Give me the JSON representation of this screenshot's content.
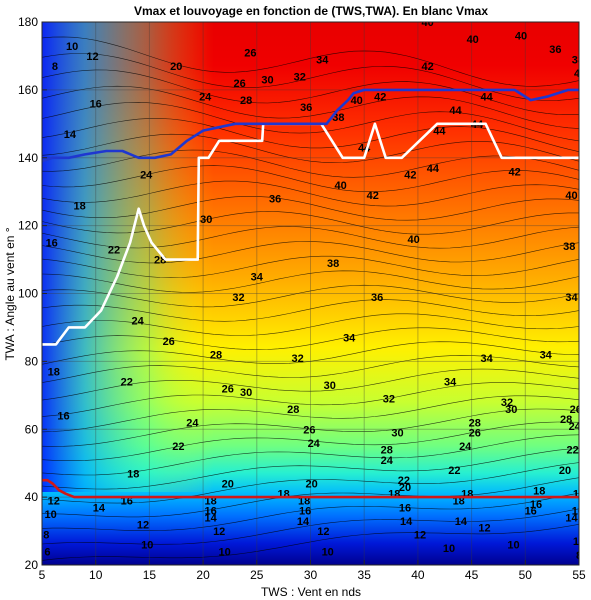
{
  "chart_data": {
    "type": "contour",
    "title": "Vmax et louvoyage en fonction de (TWS,TWA). En blanc Vmax",
    "xlabel": "TWS : Vent en nds",
    "ylabel": "TWA : Angle au vent en °",
    "xlim": [
      5,
      55
    ],
    "ylim": [
      20,
      180
    ],
    "xticks": [
      "5",
      "10",
      "15",
      "20",
      "25",
      "30",
      "35",
      "40",
      "45",
      "50",
      "55"
    ],
    "yticks": [
      "20",
      "40",
      "60",
      "80",
      "100",
      "120",
      "140",
      "160",
      "180"
    ],
    "grid": true,
    "colormap": "jet",
    "contour_labels": [
      {
        "x": 6.2,
        "y": 167,
        "text": "8"
      },
      {
        "x": 7.8,
        "y": 173,
        "text": "10"
      },
      {
        "x": 9.7,
        "y": 170,
        "text": "12"
      },
      {
        "x": 7.6,
        "y": 147,
        "text": "14"
      },
      {
        "x": 10.0,
        "y": 156,
        "text": "16"
      },
      {
        "x": 8.5,
        "y": 126,
        "text": "18"
      },
      {
        "x": 5.9,
        "y": 115,
        "text": "16"
      },
      {
        "x": 17.5,
        "y": 167,
        "text": "20"
      },
      {
        "x": 11.7,
        "y": 113,
        "text": "22"
      },
      {
        "x": 14.7,
        "y": 135,
        "text": "24"
      },
      {
        "x": 16.0,
        "y": 110,
        "text": "28"
      },
      {
        "x": 16.8,
        "y": 86,
        "text": "26"
      },
      {
        "x": 20.3,
        "y": 122,
        "text": "30"
      },
      {
        "x": 20.2,
        "y": 158,
        "text": "24"
      },
      {
        "x": 23.4,
        "y": 162,
        "text": "26"
      },
      {
        "x": 24.4,
        "y": 171,
        "text": "26"
      },
      {
        "x": 24.0,
        "y": 157,
        "text": "28"
      },
      {
        "x": 29.0,
        "y": 164,
        "text": "32"
      },
      {
        "x": 31.1,
        "y": 169,
        "text": "34"
      },
      {
        "x": 26.0,
        "y": 163,
        "text": "30"
      },
      {
        "x": 29.6,
        "y": 155,
        "text": "36"
      },
      {
        "x": 32.6,
        "y": 152,
        "text": "38"
      },
      {
        "x": 34.3,
        "y": 157,
        "text": "40"
      },
      {
        "x": 36.5,
        "y": 158,
        "text": "42"
      },
      {
        "x": 40.9,
        "y": 167,
        "text": "42"
      },
      {
        "x": 40.9,
        "y": 180,
        "text": "40"
      },
      {
        "x": 45.1,
        "y": 175,
        "text": "40"
      },
      {
        "x": 49.6,
        "y": 176,
        "text": "40"
      },
      {
        "x": 52.8,
        "y": 172,
        "text": "36"
      },
      {
        "x": 54.9,
        "y": 169,
        "text": "38"
      },
      {
        "x": 55.1,
        "y": 165,
        "text": "40"
      },
      {
        "x": 43.5,
        "y": 154,
        "text": "44"
      },
      {
        "x": 45.5,
        "y": 150,
        "text": "44"
      },
      {
        "x": 46.4,
        "y": 158,
        "text": "44"
      },
      {
        "x": 42.0,
        "y": 148,
        "text": "44"
      },
      {
        "x": 35.0,
        "y": 143,
        "text": "44"
      },
      {
        "x": 41.4,
        "y": 137,
        "text": "44"
      },
      {
        "x": 39.3,
        "y": 135,
        "text": "42"
      },
      {
        "x": 35.8,
        "y": 129,
        "text": "42"
      },
      {
        "x": 32.8,
        "y": 132,
        "text": "40"
      },
      {
        "x": 49.0,
        "y": 136,
        "text": "42"
      },
      {
        "x": 39.6,
        "y": 116,
        "text": "40"
      },
      {
        "x": 54.3,
        "y": 129,
        "text": "40"
      },
      {
        "x": 54.1,
        "y": 114,
        "text": "38"
      },
      {
        "x": 54.3,
        "y": 99,
        "text": "34"
      },
      {
        "x": 51.9,
        "y": 82,
        "text": "34"
      },
      {
        "x": 26.7,
        "y": 128,
        "text": "36"
      },
      {
        "x": 32.1,
        "y": 109,
        "text": "38"
      },
      {
        "x": 36.2,
        "y": 99,
        "text": "36"
      },
      {
        "x": 25.0,
        "y": 105,
        "text": "34"
      },
      {
        "x": 33.6,
        "y": 87,
        "text": "34"
      },
      {
        "x": 23.3,
        "y": 99,
        "text": "32"
      },
      {
        "x": 24.0,
        "y": 71,
        "text": "30"
      },
      {
        "x": 28.8,
        "y": 81,
        "text": "32"
      },
      {
        "x": 21.2,
        "y": 82,
        "text": "28"
      },
      {
        "x": 31.8,
        "y": 73,
        "text": "30"
      },
      {
        "x": 28.4,
        "y": 66,
        "text": "28"
      },
      {
        "x": 43.0,
        "y": 74,
        "text": "34"
      },
      {
        "x": 46.4,
        "y": 81,
        "text": "34"
      },
      {
        "x": 22.3,
        "y": 72,
        "text": "26"
      },
      {
        "x": 29.9,
        "y": 60,
        "text": "26"
      },
      {
        "x": 37.3,
        "y": 69,
        "text": "32"
      },
      {
        "x": 38.1,
        "y": 59,
        "text": "30"
      },
      {
        "x": 48.3,
        "y": 68,
        "text": "32"
      },
      {
        "x": 53.8,
        "y": 63,
        "text": "28"
      },
      {
        "x": 13.9,
        "y": 92,
        "text": "24"
      },
      {
        "x": 19.0,
        "y": 62,
        "text": "24"
      },
      {
        "x": 12.9,
        "y": 74,
        "text": "22"
      },
      {
        "x": 17.7,
        "y": 55,
        "text": "22"
      },
      {
        "x": 30.3,
        "y": 56,
        "text": "24"
      },
      {
        "x": 37.1,
        "y": 54,
        "text": "28"
      },
      {
        "x": 45.3,
        "y": 62,
        "text": "28"
      },
      {
        "x": 45.3,
        "y": 59,
        "text": "26"
      },
      {
        "x": 54.7,
        "y": 66,
        "text": "26"
      },
      {
        "x": 48.7,
        "y": 66,
        "text": "30"
      },
      {
        "x": 54.6,
        "y": 61,
        "text": "24"
      },
      {
        "x": 44.4,
        "y": 55,
        "text": "24"
      },
      {
        "x": 37.1,
        "y": 51,
        "text": "24"
      },
      {
        "x": 22.3,
        "y": 44,
        "text": "20"
      },
      {
        "x": 30.1,
        "y": 44,
        "text": "20"
      },
      {
        "x": 38.7,
        "y": 45,
        "text": "22"
      },
      {
        "x": 43.4,
        "y": 48,
        "text": "22"
      },
      {
        "x": 54.4,
        "y": 54,
        "text": "22"
      },
      {
        "x": 53.7,
        "y": 48,
        "text": "20"
      },
      {
        "x": 38.8,
        "y": 43,
        "text": "20"
      },
      {
        "x": 6.1,
        "y": 77,
        "text": "18"
      },
      {
        "x": 7.0,
        "y": 64,
        "text": "16"
      },
      {
        "x": 13.5,
        "y": 47,
        "text": "18"
      },
      {
        "x": 27.5,
        "y": 41,
        "text": "18"
      },
      {
        "x": 37.8,
        "y": 41,
        "text": "18"
      },
      {
        "x": 44.6,
        "y": 41,
        "text": "18"
      },
      {
        "x": 51.3,
        "y": 42,
        "text": "18"
      },
      {
        "x": 55.0,
        "y": 41,
        "text": "18"
      },
      {
        "x": 6.1,
        "y": 39,
        "text": "12"
      },
      {
        "x": 5.8,
        "y": 35,
        "text": "10"
      },
      {
        "x": 10.3,
        "y": 37,
        "text": "14"
      },
      {
        "x": 12.9,
        "y": 39,
        "text": "16"
      },
      {
        "x": 20.7,
        "y": 39,
        "text": "18"
      },
      {
        "x": 29.4,
        "y": 39,
        "text": "18"
      },
      {
        "x": 43.8,
        "y": 39,
        "text": "18"
      },
      {
        "x": 51.0,
        "y": 38,
        "text": "16"
      },
      {
        "x": 20.7,
        "y": 36,
        "text": "16"
      },
      {
        "x": 29.5,
        "y": 36,
        "text": "16"
      },
      {
        "x": 38.8,
        "y": 37,
        "text": "16"
      },
      {
        "x": 50.5,
        "y": 36,
        "text": "16"
      },
      {
        "x": 54.9,
        "y": 36,
        "text": "16"
      },
      {
        "x": 20.7,
        "y": 34,
        "text": "14"
      },
      {
        "x": 29.3,
        "y": 33,
        "text": "14"
      },
      {
        "x": 38.9,
        "y": 33,
        "text": "14"
      },
      {
        "x": 44.0,
        "y": 33,
        "text": "14"
      },
      {
        "x": 54.3,
        "y": 34,
        "text": "14"
      },
      {
        "x": 14.4,
        "y": 32,
        "text": "12"
      },
      {
        "x": 21.5,
        "y": 30,
        "text": "12"
      },
      {
        "x": 31.2,
        "y": 30,
        "text": "12"
      },
      {
        "x": 40.2,
        "y": 29,
        "text": "12"
      },
      {
        "x": 46.2,
        "y": 31,
        "text": "12"
      },
      {
        "x": 5.4,
        "y": 29,
        "text": "8"
      },
      {
        "x": 14.8,
        "y": 26,
        "text": "10"
      },
      {
        "x": 22.0,
        "y": 24,
        "text": "10"
      },
      {
        "x": 31.6,
        "y": 24,
        "text": "10"
      },
      {
        "x": 42.9,
        "y": 25,
        "text": "10"
      },
      {
        "x": 48.9,
        "y": 26,
        "text": "10"
      },
      {
        "x": 55.0,
        "y": 27,
        "text": "10"
      },
      {
        "x": 5.5,
        "y": 24,
        "text": "6"
      },
      {
        "x": 55.0,
        "y": 23,
        "text": "8"
      }
    ],
    "series": [
      {
        "color": "#ffffff",
        "x": [
          5,
          6.3,
          7.5,
          9.0,
          10.5,
          12.0,
          13.2,
          14.0,
          14.5,
          15.2,
          16.5,
          18.5,
          19.5,
          19.6,
          20.5,
          21.5,
          25.5,
          25.6,
          31.0,
          33.0,
          33.6,
          35.0,
          36.0,
          37.0,
          37.5,
          38.5,
          41.8,
          44.6,
          46.3,
          47.8,
          55.0
        ],
        "y": [
          85,
          85,
          90,
          90,
          95,
          105,
          115,
          125,
          120,
          115,
          110,
          110,
          110,
          140,
          140,
          145,
          145,
          150,
          150,
          140,
          140,
          140,
          150,
          140,
          140,
          140,
          150,
          150,
          150,
          140,
          140
        ]
      },
      {
        "color": "#1f37d0",
        "x": [
          5,
          6.0,
          7.5,
          9.0,
          11.0,
          12.5,
          14.0,
          15.5,
          17.0,
          18.5,
          20.0,
          21.5,
          23.0,
          24.5,
          26.0,
          28.0,
          30.0,
          31.5,
          32.5,
          33.5,
          34.0,
          35.0,
          38.0,
          42.0,
          46.0,
          49.0,
          50.5,
          52.0,
          54.0,
          55.0
        ],
        "y": [
          139,
          140,
          140,
          141,
          142,
          142,
          140,
          140,
          141,
          145,
          148,
          149,
          150,
          150,
          150,
          150,
          150,
          150,
          154,
          157,
          159,
          160,
          160,
          160,
          160,
          160,
          157,
          158,
          160,
          160
        ]
      },
      {
        "color": "#d01818",
        "x": [
          5,
          5.5,
          6.0,
          6.6,
          7.2,
          8.0,
          10.0,
          15.0,
          20.0,
          25.0,
          30.0,
          35.0,
          40.0,
          45.0,
          50.0,
          55.0
        ],
        "y": [
          45,
          45,
          44,
          42,
          41,
          40,
          40,
          40,
          40,
          40,
          40,
          40,
          40,
          40,
          40,
          40
        ]
      }
    ]
  }
}
